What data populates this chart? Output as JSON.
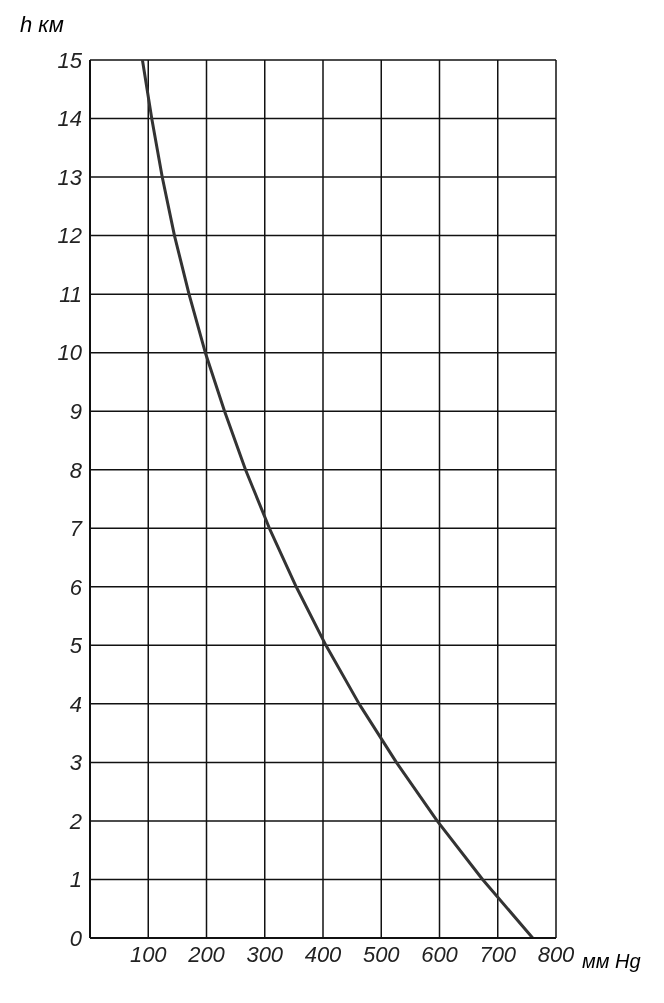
{
  "chart_data": {
    "type": "line",
    "xlabel": "мм Hg",
    "ylabel": "h км",
    "x": [
      90,
      106,
      124,
      145,
      170,
      198,
      231,
      267,
      308,
      354,
      405,
      462,
      526,
      596,
      674,
      760
    ],
    "series": [
      {
        "color": "#333333",
        "values": [
          15,
          14,
          13,
          12,
          11,
          10,
          9,
          8,
          7,
          6,
          5,
          4,
          3,
          2,
          1,
          0
        ]
      }
    ],
    "xlim": [
      0,
      800
    ],
    "xticks": [
      100,
      200,
      300,
      400,
      500,
      600,
      700,
      800
    ],
    "ylim": [
      0,
      15
    ],
    "yticks": [
      0,
      1,
      2,
      3,
      4,
      5,
      6,
      7,
      8,
      9,
      10,
      11,
      12,
      13,
      14,
      15
    ],
    "grid": true,
    "marker": "none",
    "line_style": "solid",
    "legend": false
  }
}
